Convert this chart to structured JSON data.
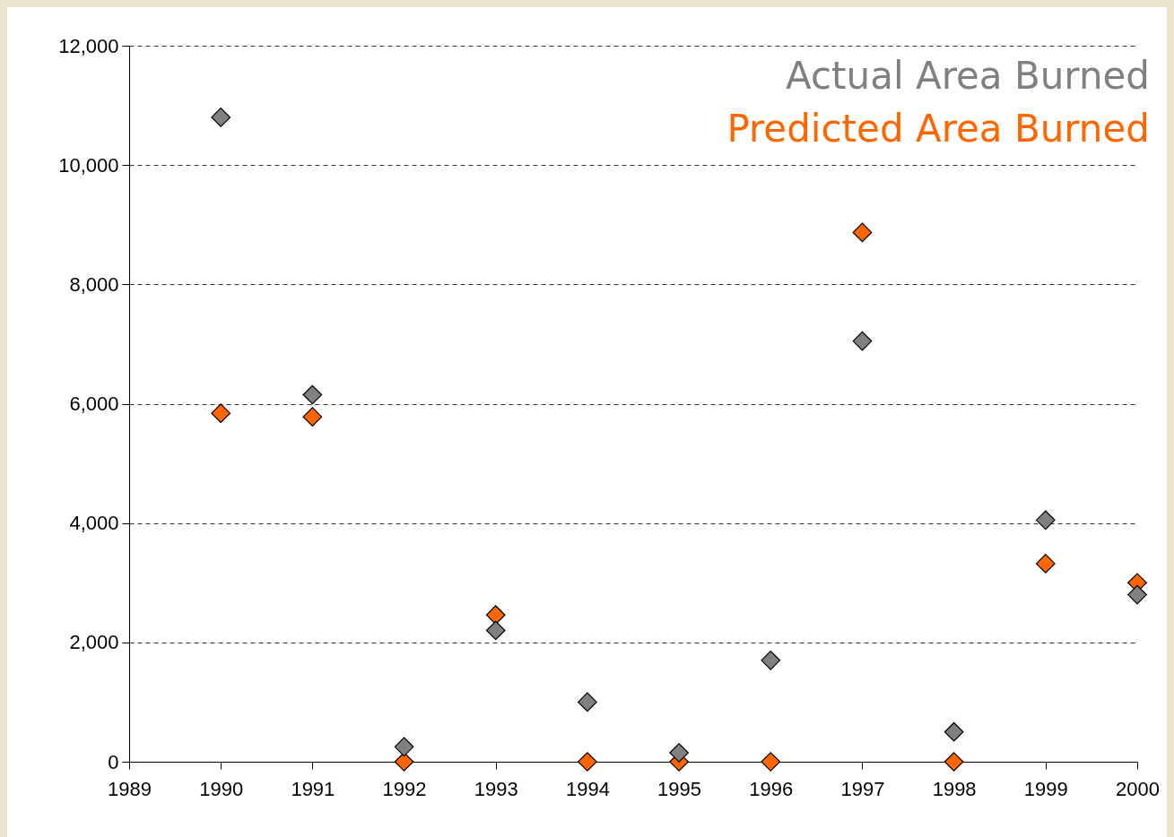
{
  "chart_data": {
    "type": "scatter",
    "x": [
      1990,
      1991,
      1992,
      1993,
      1994,
      1995,
      1996,
      1997,
      1998,
      1999,
      2000
    ],
    "series": [
      {
        "name": "Predicted Area Burned",
        "color": "#ff6600",
        "values": [
          5840,
          5780,
          0,
          2460,
          0,
          0,
          0,
          8870,
          0,
          3320,
          3000
        ]
      },
      {
        "name": "Actual Area Burned",
        "color": "#808080",
        "values": [
          10800,
          6150,
          250,
          2200,
          1000,
          150,
          1700,
          7050,
          500,
          4050,
          2800
        ]
      }
    ],
    "xlim": [
      1989,
      2000
    ],
    "xticks": [
      1989,
      1990,
      1991,
      1992,
      1993,
      1994,
      1995,
      1996,
      1997,
      1998,
      1999,
      2000
    ],
    "ylim": [
      0,
      12000
    ],
    "yticks": [
      0,
      {
        "value": 2000,
        "label": "2,000"
      },
      {
        "value": 4000,
        "label": "4,000"
      },
      {
        "value": 6000,
        "label": "6,000"
      },
      {
        "value": 8000,
        "label": "8,000"
      },
      {
        "value": 10000,
        "label": "10,000"
      },
      {
        "value": 12000,
        "label": "12,000"
      }
    ],
    "grid": "y",
    "marker": "diamond",
    "legend": "top right"
  }
}
